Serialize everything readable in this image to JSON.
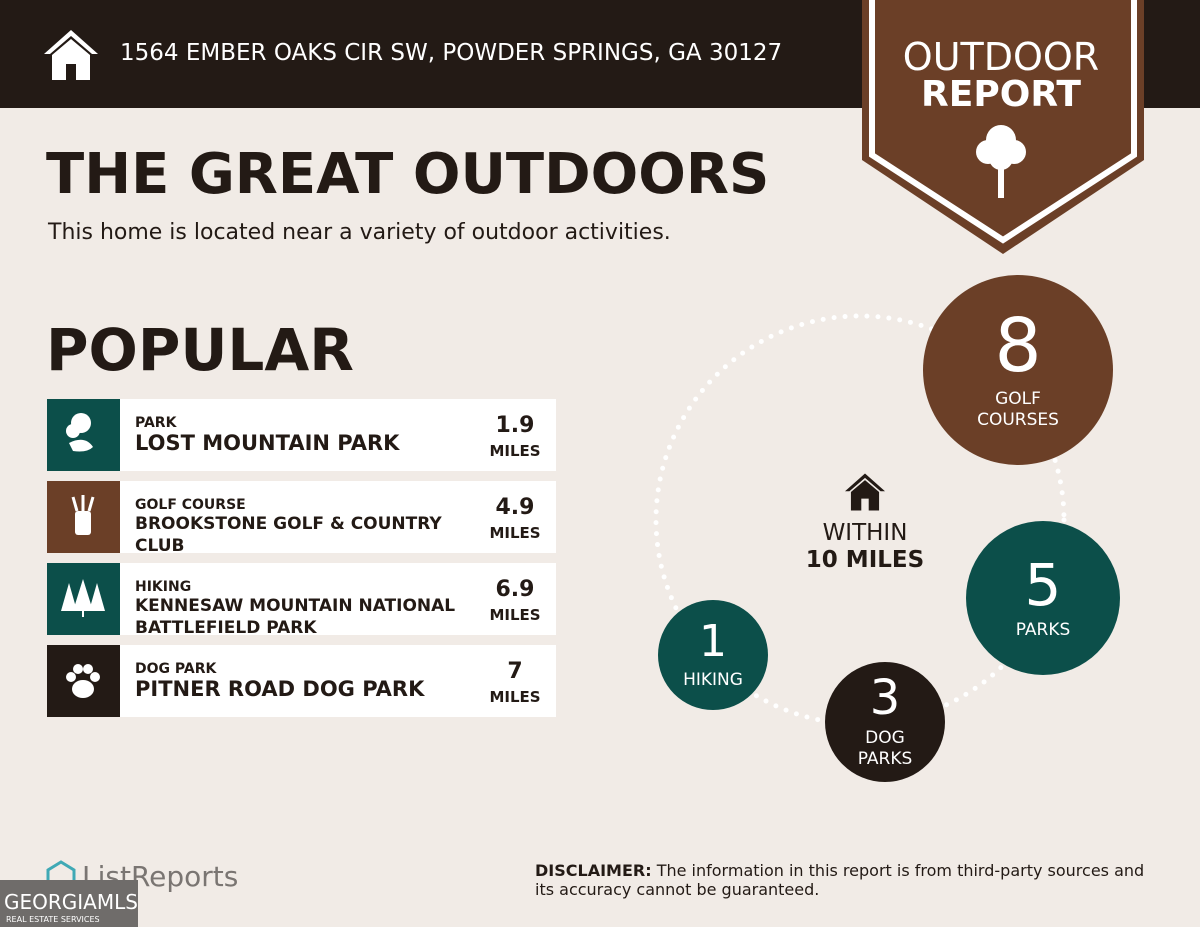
{
  "header": {
    "address": "1564 EMBER OAKS CIR SW, POWDER SPRINGS, GA 30127",
    "badge_line1": "OUTDOOR",
    "badge_line2": "REPORT"
  },
  "title": "THE GREAT OUTDOORS",
  "subtitle": "This home is located near a variety of outdoor activities.",
  "popular": {
    "title": "POPULAR",
    "items": [
      {
        "category": "PARK",
        "name": "LOST MOUNTAIN PARK",
        "distance": 1.9,
        "unit": "MILES"
      },
      {
        "category": "GOLF COURSE",
        "name": "BROOKSTONE GOLF & COUNTRY CLUB",
        "distance": 4.9,
        "unit": "MILES"
      },
      {
        "category": "HIKING",
        "name": "KENNESAW MOUNTAIN NATIONAL BATTLEFIELD PARK",
        "distance": 6.9,
        "unit": "MILES"
      },
      {
        "category": "DOG PARK",
        "name": "PITNER ROAD DOG PARK",
        "distance": 7,
        "unit": "MILES"
      }
    ]
  },
  "summary": {
    "within": "WITHIN",
    "radius": "10 MILES",
    "circles": [
      {
        "count": 8,
        "label": "GOLF COURSES"
      },
      {
        "count": 5,
        "label": "PARKS"
      },
      {
        "count": 3,
        "label": "DOG PARKS"
      },
      {
        "count": 1,
        "label": "HIKING"
      }
    ]
  },
  "footer": {
    "brand": "ListReports",
    "disclaimer_label": "DISCLAIMER:",
    "disclaimer": "The information in this report is from third-party sources and its accuracy cannot be guaranteed.",
    "mls": "GEORGIAMLS",
    "mls_sub": "REAL ESTATE SERVICES"
  }
}
